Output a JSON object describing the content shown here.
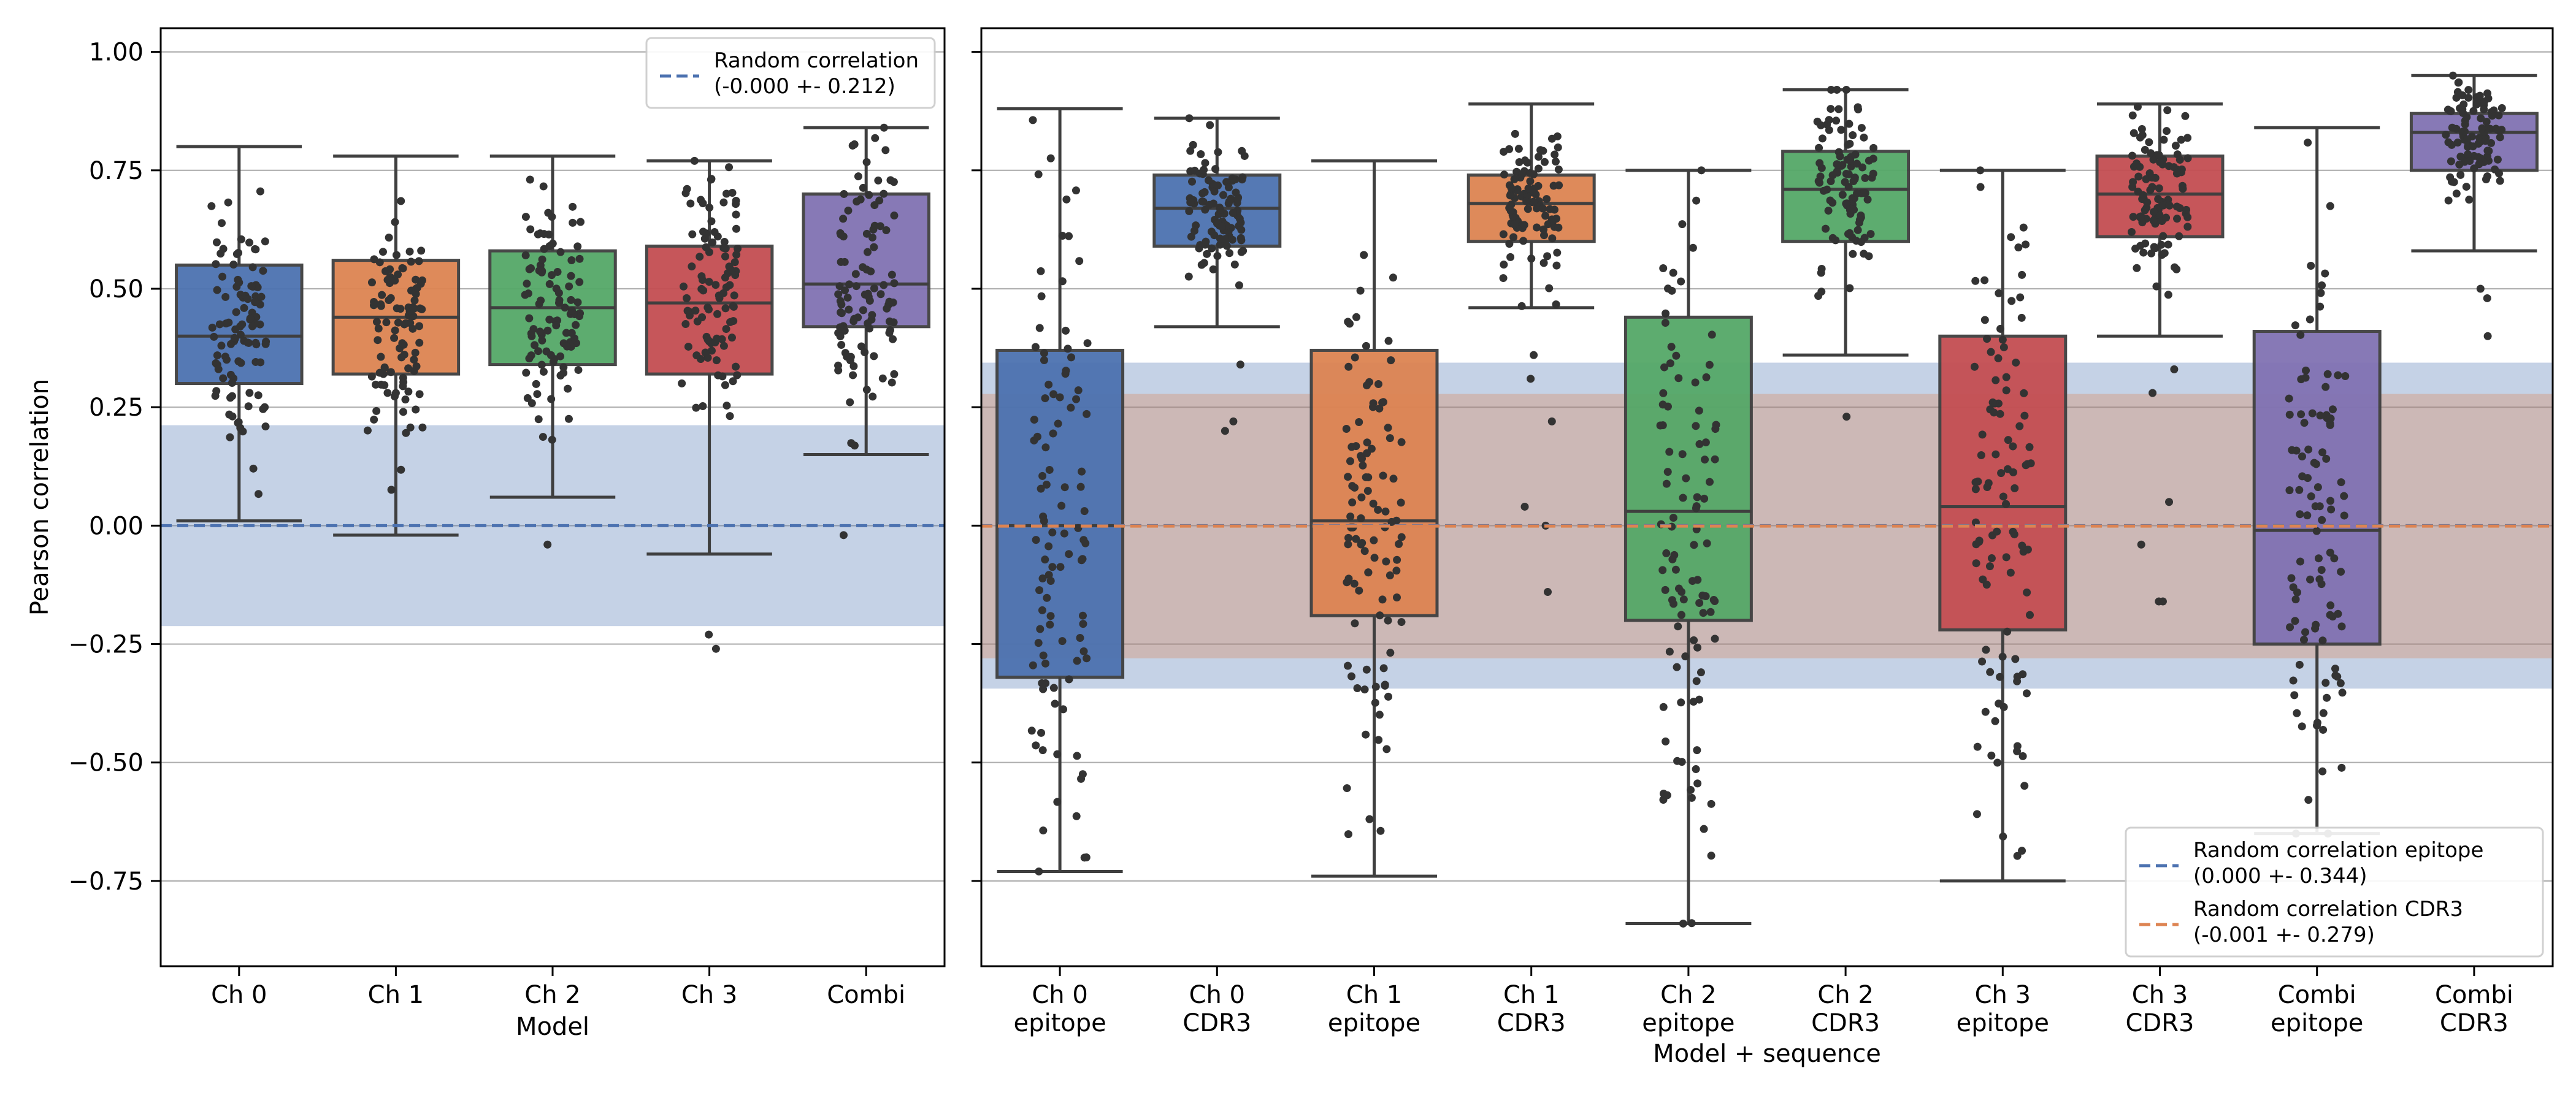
{
  "chart_data": [
    {
      "type": "box",
      "title": "",
      "xlabel": "Model",
      "ylabel": "Pearson correlation",
      "ylim": [
        -0.93,
        1.05
      ],
      "yticks": [
        -0.75,
        -0.5,
        -0.25,
        0.0,
        0.25,
        0.5,
        0.75,
        1.0
      ],
      "ytick_labels": [
        "−0.75",
        "−0.50",
        "−0.25",
        "0.00",
        "0.25",
        "0.50",
        "0.75",
        "1.00"
      ],
      "grid": "horizontal",
      "categories": [
        "Ch 0",
        "Ch 1",
        "Ch 2",
        "Ch 3",
        "Combi"
      ],
      "boxes": [
        {
          "min": 0.01,
          "q1": 0.3,
          "median": 0.4,
          "q3": 0.55,
          "max": 0.8,
          "outliers": [],
          "color": "#4C72B0"
        },
        {
          "min": -0.02,
          "q1": 0.32,
          "median": 0.44,
          "q3": 0.56,
          "max": 0.78,
          "outliers": [],
          "color": "#DD8452"
        },
        {
          "min": 0.06,
          "q1": 0.34,
          "median": 0.46,
          "q3": 0.58,
          "max": 0.78,
          "outliers": [
            -0.04
          ],
          "color": "#55A868"
        },
        {
          "min": -0.06,
          "q1": 0.32,
          "median": 0.47,
          "q3": 0.59,
          "max": 0.77,
          "outliers": [
            -0.23,
            -0.26
          ],
          "color": "#C44E52"
        },
        {
          "min": 0.15,
          "q1": 0.42,
          "median": 0.51,
          "q3": 0.7,
          "max": 0.84,
          "outliers": [
            -0.02
          ],
          "color": "#8172B3"
        }
      ],
      "random_bands": [
        {
          "label": "Random correlation\n(-0.000 +- 0.212)",
          "mean": 0.0,
          "sd": 0.212,
          "color": "#4C72B0"
        }
      ],
      "legend_position": "top-right"
    },
    {
      "type": "box",
      "title": "",
      "xlabel": "Model + sequence",
      "ylabel": "",
      "ylim": [
        -0.93,
        1.05
      ],
      "yticks": [
        -0.75,
        -0.5,
        -0.25,
        0.0,
        0.25,
        0.5,
        0.75,
        1.0
      ],
      "grid": "horizontal",
      "categories": [
        "Ch 0\nepitope",
        "Ch 0\nCDR3",
        "Ch 1\nepitope",
        "Ch 1\nCDR3",
        "Ch 2\nepitope",
        "Ch 2\nCDR3",
        "Ch 3\nepitope",
        "Ch 3\nCDR3",
        "Combi\nepitope",
        "Combi\nCDR3"
      ],
      "boxes": [
        {
          "min": -0.73,
          "q1": -0.32,
          "median": 0.0,
          "q3": 0.37,
          "max": 0.88,
          "outliers": [],
          "color": "#4C72B0"
        },
        {
          "min": 0.42,
          "q1": 0.59,
          "median": 0.67,
          "q3": 0.74,
          "max": 0.86,
          "outliers": [
            0.34,
            0.22,
            0.2
          ],
          "color": "#4C72B0"
        },
        {
          "min": -0.74,
          "q1": -0.19,
          "median": 0.01,
          "q3": 0.37,
          "max": 0.77,
          "outliers": [],
          "color": "#DD8452"
        },
        {
          "min": 0.46,
          "q1": 0.6,
          "median": 0.68,
          "q3": 0.74,
          "max": 0.89,
          "outliers": [
            0.36,
            0.31,
            0.22,
            0.04,
            0.0,
            -0.14
          ],
          "color": "#DD8452"
        },
        {
          "min": -0.84,
          "q1": -0.2,
          "median": 0.03,
          "q3": 0.44,
          "max": 0.75,
          "outliers": [],
          "color": "#55A868"
        },
        {
          "min": 0.36,
          "q1": 0.6,
          "median": 0.71,
          "q3": 0.79,
          "max": 0.92,
          "outliers": [
            0.23
          ],
          "color": "#55A868"
        },
        {
          "min": -0.75,
          "q1": -0.22,
          "median": 0.04,
          "q3": 0.4,
          "max": 0.75,
          "outliers": [],
          "color": "#C44E52"
        },
        {
          "min": 0.4,
          "q1": 0.61,
          "median": 0.7,
          "q3": 0.78,
          "max": 0.89,
          "outliers": [
            0.33,
            0.28,
            0.05,
            -0.04,
            -0.16,
            -0.16
          ],
          "color": "#C44E52"
        },
        {
          "min": -0.65,
          "q1": -0.25,
          "median": -0.01,
          "q3": 0.41,
          "max": 0.84,
          "outliers": [],
          "color": "#8172B3"
        },
        {
          "min": 0.58,
          "q1": 0.75,
          "median": 0.83,
          "q3": 0.87,
          "max": 0.95,
          "outliers": [
            0.5,
            0.48,
            0.4
          ],
          "color": "#8172B3"
        }
      ],
      "random_bands": [
        {
          "label": "Random correlation epitope\n(0.000 +- 0.344)",
          "mean": 0.0,
          "sd": 0.344,
          "color": "#4C72B0"
        },
        {
          "label": "Random correlation CDR3\n(-0.001 +- 0.279)",
          "mean": -0.001,
          "sd": 0.279,
          "color": "#DD8452"
        }
      ],
      "legend_position": "bottom-right"
    }
  ]
}
